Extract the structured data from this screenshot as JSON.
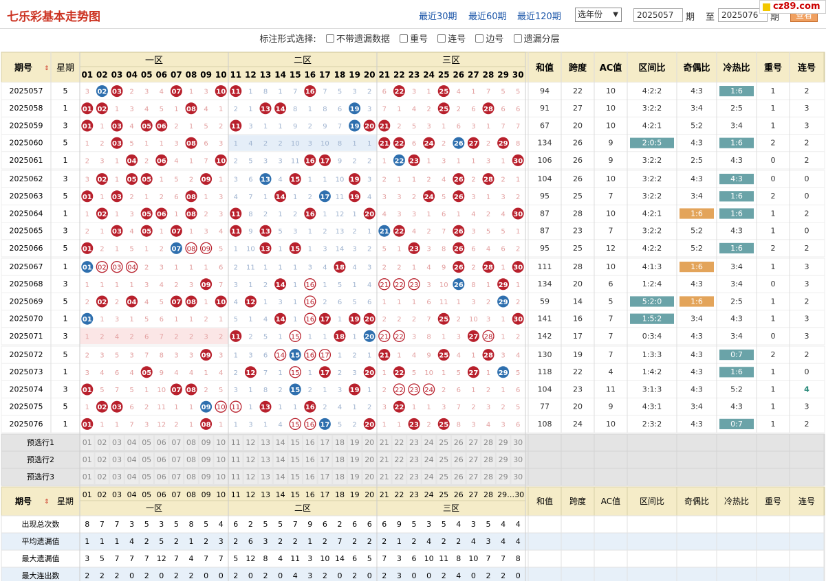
{
  "header": {
    "title": "七乐彩基本走势图",
    "links": [
      "最近30期",
      "最近60期",
      "最近120期"
    ],
    "year_select": "选年份",
    "from_value": "2025057",
    "period_label": "期",
    "to_label": "至",
    "to_value": "2025076",
    "query_label": "查看",
    "brand": "cz89.com"
  },
  "options": {
    "label": "标注形式选择:",
    "items": [
      "不带遗漏数据",
      "重号",
      "连号",
      "边号",
      "遗漏分层"
    ]
  },
  "table": {
    "head": {
      "issue": "期号",
      "week": "星期",
      "zones": [
        "一区",
        "二区",
        "三区"
      ],
      "stats": [
        "和值",
        "跨度",
        "AC值",
        "区间比",
        "奇偶比",
        "冷热比",
        "重号",
        "连号"
      ]
    },
    "numbers": [
      "01",
      "02",
      "03",
      "04",
      "05",
      "06",
      "07",
      "08",
      "09",
      "10",
      "11",
      "12",
      "13",
      "14",
      "15",
      "16",
      "17",
      "18",
      "19",
      "20",
      "21",
      "22",
      "23",
      "24",
      "25",
      "26",
      "27",
      "28",
      "29",
      "30"
    ],
    "rows": [
      {
        "issue": "2025057",
        "week": "5",
        "cells": [
          "3",
          "B02",
          "R03",
          "2",
          "3",
          "4",
          "R07",
          "1",
          "3",
          "R10",
          "R11",
          "1",
          "8",
          "1",
          "7",
          "R16",
          "7",
          "5",
          "3",
          "2",
          "6",
          "R22",
          "3",
          "1",
          "R25",
          "4",
          "1",
          "7",
          "5",
          "5"
        ],
        "stats": [
          "94",
          "22",
          "10",
          "4:2:2",
          "4:3",
          "1:6",
          "1",
          "2"
        ]
      },
      {
        "issue": "2025058",
        "week": "1",
        "cells": [
          "R01",
          "R02",
          "1",
          "3",
          "4",
          "5",
          "1",
          "R08",
          "4",
          "1",
          "2",
          "1",
          "R13",
          "R14",
          "8",
          "1",
          "8",
          "6",
          "B19",
          "3",
          "7",
          "1",
          "4",
          "2",
          "R25",
          "2",
          "6",
          "R28",
          "6",
          "6"
        ],
        "stats": [
          "91",
          "27",
          "10",
          "3:2:2",
          "3:4",
          "2:5",
          "1",
          "3"
        ]
      },
      {
        "issue": "2025059",
        "week": "3",
        "cells": [
          "R01",
          "1",
          "R03",
          "4",
          "R05",
          "R06",
          "2",
          "1",
          "5",
          "2",
          "R11",
          "3",
          "1",
          "1",
          "9",
          "2",
          "9",
          "7",
          "B19",
          "R20",
          "R21",
          "2",
          "5",
          "3",
          "1",
          "6",
          "3",
          "1",
          "7",
          "7"
        ],
        "stats": [
          "67",
          "20",
          "10",
          "4:2:1",
          "5:2",
          "3:4",
          "1",
          "3"
        ]
      },
      {
        "issue": "2025060",
        "week": "5",
        "cells": [
          "1",
          "2",
          "R03",
          "5",
          "1",
          "1",
          "3",
          "R08",
          "6",
          "3",
          "1",
          "4",
          "2",
          "2",
          "10",
          "3",
          "10",
          "8",
          "1",
          "1",
          "R21",
          "R22",
          "6",
          "R24",
          "2",
          "B26",
          "R27",
          "2",
          "R29",
          "8"
        ],
        "stats": [
          "134",
          "26",
          "9",
          "2:0:5",
          "4:3",
          "1:6",
          "2",
          "2"
        ]
      },
      {
        "issue": "2025061",
        "week": "1",
        "cells": [
          "2",
          "3",
          "1",
          "R04",
          "2",
          "R06",
          "4",
          "1",
          "7",
          "R10",
          "2",
          "5",
          "3",
          "3",
          "11",
          "R16",
          "R17",
          "9",
          "2",
          "2",
          "1",
          "B22",
          "R23",
          "1",
          "3",
          "1",
          "1",
          "3",
          "1",
          "R30"
        ],
        "stats": [
          "106",
          "26",
          "9",
          "3:2:2",
          "2:5",
          "4:3",
          "0",
          "2"
        ]
      },
      {
        "issue": "2025062",
        "week": "3",
        "cells": [
          "3",
          "R02",
          "1",
          "R05",
          "R05",
          "1",
          "5",
          "2",
          "R09",
          "1",
          "3",
          "6",
          "B13",
          "4",
          "R15",
          "1",
          "1",
          "10",
          "R19",
          "3",
          "2",
          "1",
          "1",
          "2",
          "4",
          "R26",
          "2",
          "R28",
          "2",
          "1"
        ],
        "stats": [
          "104",
          "26",
          "10",
          "3:2:2",
          "4:3",
          "4:3",
          "0",
          "0"
        ]
      },
      {
        "issue": "2025063",
        "week": "5",
        "cells": [
          "R01",
          "1",
          "R03",
          "2",
          "1",
          "2",
          "6",
          "R08",
          "1",
          "3",
          "4",
          "7",
          "1",
          "R14",
          "1",
          "2",
          "B17",
          "11",
          "R19",
          "4",
          "3",
          "3",
          "2",
          "R24",
          "5",
          "R26",
          "3",
          "1",
          "3",
          "2"
        ],
        "stats": [
          "95",
          "25",
          "7",
          "3:2:2",
          "3:4",
          "1:6",
          "2",
          "0"
        ]
      },
      {
        "issue": "2025064",
        "week": "1",
        "cells": [
          "1",
          "R02",
          "1",
          "3",
          "R05",
          "R06",
          "1",
          "R08",
          "2",
          "3",
          "R11",
          "8",
          "2",
          "1",
          "2",
          "R16",
          "1",
          "12",
          "1",
          "R20",
          "4",
          "3",
          "3",
          "1",
          "6",
          "1",
          "4",
          "2",
          "4",
          "R30"
        ],
        "stats": [
          "87",
          "28",
          "10",
          "4:2:1",
          "1:6",
          "1:6",
          "1",
          "2"
        ]
      },
      {
        "issue": "2025065",
        "week": "3",
        "cells": [
          "2",
          "1",
          "R03",
          "4",
          "R05",
          "1",
          "R07",
          "1",
          "3",
          "4",
          "R11",
          "9",
          "R13",
          "5",
          "3",
          "1",
          "2",
          "13",
          "2",
          "1",
          "B21",
          "R22",
          "4",
          "2",
          "7",
          "R26",
          "3",
          "5",
          "5",
          "1"
        ],
        "stats": [
          "87",
          "23",
          "7",
          "3:2:2",
          "5:2",
          "4:3",
          "1",
          "0"
        ]
      },
      {
        "issue": "2025066",
        "week": "5",
        "cells": [
          "R01",
          "2",
          "1",
          "5",
          "1",
          "2",
          "B07",
          "O08",
          "O09",
          "5",
          "1",
          "10",
          "R13",
          "1",
          "R15",
          "1",
          "3",
          "14",
          "3",
          "2",
          "5",
          "1",
          "R23",
          "3",
          "8",
          "R26",
          "6",
          "4",
          "6",
          "2"
        ],
        "stats": [
          "95",
          "25",
          "12",
          "4:2:2",
          "5:2",
          "1:6",
          "2",
          "2"
        ]
      },
      {
        "issue": "2025067",
        "week": "1",
        "cells": [
          "B01",
          "O02",
          "O03",
          "O04",
          "2",
          "3",
          "1",
          "1",
          "1",
          "6",
          "2",
          "11",
          "1",
          "1",
          "1",
          "3",
          "4",
          "R18",
          "4",
          "3",
          "2",
          "2",
          "1",
          "4",
          "9",
          "R26",
          "2",
          "R28",
          "1",
          "R30"
        ],
        "stats": [
          "111",
          "28",
          "10",
          "4:1:3",
          "1:6",
          "3:4",
          "1",
          "3"
        ]
      },
      {
        "issue": "2025068",
        "week": "3",
        "cells": [
          "1",
          "1",
          "1",
          "1",
          "3",
          "4",
          "2",
          "3",
          "R09",
          "7",
          "3",
          "1",
          "2",
          "R14",
          "1",
          "O16",
          "1",
          "5",
          "1",
          "4",
          "O21",
          "O22",
          "O23",
          "3",
          "10",
          "B26",
          "8",
          "1",
          "R29",
          "1"
        ],
        "stats": [
          "134",
          "20",
          "6",
          "1:2:4",
          "4:3",
          "3:4",
          "0",
          "3"
        ]
      },
      {
        "issue": "2025069",
        "week": "5",
        "cells": [
          "2",
          "R02",
          "2",
          "R04",
          "4",
          "5",
          "R07",
          "R08",
          "1",
          "R10",
          "4",
          "R12",
          "1",
          "3",
          "1",
          "O16",
          "2",
          "6",
          "5",
          "6",
          "1",
          "1",
          "1",
          "6",
          "11",
          "1",
          "3",
          "2",
          "B29",
          "2"
        ],
        "stats": [
          "59",
          "14",
          "5",
          "5:2:0",
          "1:6",
          "2:5",
          "1",
          "2"
        ]
      },
      {
        "issue": "2025070",
        "week": "1",
        "cells": [
          "B01",
          "1",
          "3",
          "1",
          "5",
          "6",
          "1",
          "1",
          "2",
          "1",
          "5",
          "1",
          "4",
          "R14",
          "1",
          "O16",
          "R17",
          "1",
          "R19",
          "R20",
          "2",
          "2",
          "2",
          "7",
          "R25",
          "2",
          "10",
          "3",
          "1",
          "R30"
        ],
        "stats": [
          "141",
          "16",
          "7",
          "1:5:2",
          "3:4",
          "4:3",
          "1",
          "3"
        ]
      },
      {
        "issue": "2025071",
        "week": "3",
        "cells": [
          "1",
          "2",
          "4",
          "2",
          "6",
          "7",
          "2",
          "2",
          "3",
          "2",
          "R11",
          "2",
          "5",
          "1",
          "O15",
          "1",
          "1",
          "R18",
          "1",
          "B20",
          "O21",
          "O22",
          "3",
          "8",
          "1",
          "3",
          "R27",
          "O28",
          "1",
          "2"
        ],
        "stats": [
          "142",
          "17",
          "7",
          "0:3:4",
          "4:3",
          "3:4",
          "0",
          "3"
        ]
      },
      {
        "issue": "2025072",
        "week": "5",
        "cells": [
          "2",
          "3",
          "5",
          "3",
          "7",
          "8",
          "3",
          "3",
          "R09",
          "3",
          "1",
          "3",
          "6",
          "O14",
          "B15",
          "O16",
          "O17",
          "1",
          "2",
          "1",
          "R21",
          "1",
          "4",
          "9",
          "R25",
          "4",
          "1",
          "R28",
          "3",
          "4"
        ],
        "stats": [
          "130",
          "19",
          "7",
          "1:3:3",
          "4:3",
          "0:7",
          "2",
          "2"
        ]
      },
      {
        "issue": "2025073",
        "week": "1",
        "cells": [
          "3",
          "4",
          "6",
          "4",
          "R05",
          "9",
          "4",
          "4",
          "1",
          "4",
          "2",
          "R12",
          "7",
          "1",
          "O15",
          "1",
          "R17",
          "2",
          "3",
          "R20",
          "1",
          "R22",
          "5",
          "10",
          "1",
          "5",
          "R27",
          "1",
          "B29",
          "5"
        ],
        "stats": [
          "118",
          "22",
          "4",
          "1:4:2",
          "4:3",
          "1:6",
          "1",
          "0"
        ]
      },
      {
        "issue": "2025074",
        "week": "3",
        "cells": [
          "R01",
          "5",
          "7",
          "5",
          "1",
          "10",
          "R07",
          "R08",
          "2",
          "5",
          "3",
          "1",
          "8",
          "2",
          "B15",
          "2",
          "1",
          "3",
          "R19",
          "1",
          "2",
          "O22",
          "O23",
          "O24",
          "2",
          "6",
          "1",
          "2",
          "1",
          "6"
        ],
        "stats": [
          "104",
          "23",
          "11",
          "3:1:3",
          "4:3",
          "5:2",
          "1",
          "G4"
        ]
      },
      {
        "issue": "2025075",
        "week": "5",
        "cells": [
          "1",
          "R02",
          "R03",
          "6",
          "2",
          "11",
          "1",
          "1",
          "B09",
          "O10",
          "O11",
          "1",
          "R13",
          "1",
          "1",
          "R16",
          "2",
          "4",
          "1",
          "2",
          "3",
          "R22",
          "1",
          "1",
          "3",
          "7",
          "2",
          "3",
          "2",
          "5"
        ],
        "stats": [
          "77",
          "20",
          "9",
          "4:3:1",
          "3:4",
          "4:3",
          "1",
          "3"
        ]
      },
      {
        "issue": "2025076",
        "week": "1",
        "cells": [
          "R01",
          "1",
          "1",
          "7",
          "3",
          "12",
          "2",
          "1",
          "R08",
          "1",
          "1",
          "3",
          "1",
          "4",
          "O15",
          "O16",
          "B17",
          "5",
          "2",
          "R20",
          "1",
          "1",
          "R23",
          "2",
          "R25",
          "8",
          "3",
          "4",
          "3",
          "6"
        ],
        "stats": [
          "108",
          "24",
          "10",
          "2:3:2",
          "4:3",
          "0:7",
          "1",
          "2"
        ]
      }
    ],
    "tinted_runs": [
      {
        "row": 3,
        "from": 10,
        "to": 19
      },
      {
        "row": 14,
        "from": 0,
        "to": 9
      }
    ],
    "stat_highlights": [
      {
        "row": 0,
        "col": 5,
        "style": "teal"
      },
      {
        "row": 3,
        "col": 3,
        "style": "teal"
      },
      {
        "row": 3,
        "col": 5,
        "style": "teal"
      },
      {
        "row": 5,
        "col": 5,
        "style": "teal"
      },
      {
        "row": 6,
        "col": 5,
        "style": "teal"
      },
      {
        "row": 7,
        "col": 4,
        "style": "orange"
      },
      {
        "row": 7,
        "col": 5,
        "style": "teal"
      },
      {
        "row": 9,
        "col": 5,
        "style": "teal"
      },
      {
        "row": 10,
        "col": 4,
        "style": "orange"
      },
      {
        "row": 12,
        "col": 3,
        "style": "teal"
      },
      {
        "row": 12,
        "col": 4,
        "style": "orange"
      },
      {
        "row": 13,
        "col": 3,
        "style": "teal"
      },
      {
        "row": 15,
        "col": 5,
        "style": "teal"
      },
      {
        "row": 16,
        "col": 5,
        "style": "teal"
      },
      {
        "row": 19,
        "col": 5,
        "style": "teal"
      }
    ],
    "preselect": [
      "预选行1",
      "预选行2",
      "预选行3"
    ],
    "footer": {
      "issue": "期号",
      "week": "星期",
      "num_tail": "29…30",
      "zones": [
        "一区",
        "二区",
        "三区"
      ],
      "stats": [
        "和值",
        "跨度",
        "AC值",
        "区间比",
        "奇偶比",
        "冷热比",
        "重号",
        "连号"
      ]
    },
    "summary": [
      {
        "label": "出现总次数",
        "values": [
          "8",
          "7",
          "7",
          "3",
          "5",
          "3",
          "5",
          "8",
          "5",
          "4",
          "6",
          "2",
          "5",
          "5",
          "7",
          "9",
          "6",
          "2",
          "6",
          "6",
          "6",
          "9",
          "5",
          "3",
          "5",
          "4",
          "3",
          "5",
          "4",
          "4"
        ]
      },
      {
        "label": "平均遗漏值",
        "values": [
          "1",
          "1",
          "1",
          "4",
          "2",
          "5",
          "2",
          "1",
          "2",
          "3",
          "2",
          "6",
          "3",
          "2",
          "2",
          "1",
          "2",
          "7",
          "2",
          "2",
          "2",
          "1",
          "2",
          "4",
          "2",
          "2",
          "4",
          "3",
          "4",
          "4"
        ]
      },
      {
        "label": "最大遗漏值",
        "values": [
          "3",
          "5",
          "7",
          "7",
          "7",
          "12",
          "7",
          "4",
          "7",
          "7",
          "5",
          "12",
          "8",
          "4",
          "11",
          "3",
          "10",
          "14",
          "6",
          "5",
          "7",
          "3",
          "6",
          "10",
          "11",
          "8",
          "10",
          "7",
          "7",
          "8"
        ]
      },
      {
        "label": "最大连出数",
        "values": [
          "2",
          "2",
          "2",
          "0",
          "2",
          "0",
          "2",
          "2",
          "0",
          "0",
          "2",
          "0",
          "2",
          "0",
          "4",
          "3",
          "2",
          "0",
          "2",
          "0",
          "2",
          "3",
          "0",
          "0",
          "2",
          "4",
          "0",
          "2",
          "2",
          "0"
        ]
      }
    ]
  },
  "colors": {
    "red": "#b8202c",
    "blue": "#2e6fae",
    "teal": "#6aa3a8",
    "orange": "#e3a45a",
    "header_bg": "#f5ecc8",
    "accent_green": "#2a8a7a"
  }
}
